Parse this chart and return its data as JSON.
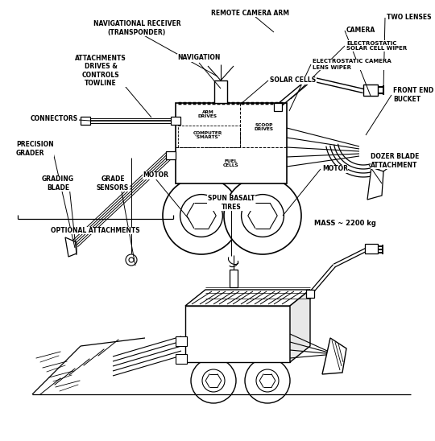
{
  "bg_color": "#ffffff",
  "line_color": "#000000",
  "fig_width": 5.4,
  "fig_height": 5.48,
  "dpi": 100,
  "labels": {
    "remote_camera_arm": "REMOTE CAMERA ARM",
    "two_lenses": "TWO LENSES",
    "camera": "CAMERA",
    "electrostatic_solar": "ELECTROSTATIC\nSOLAR CELL WIPER",
    "electrostatic_camera": "ELECTROSTATIC CAMERA\nLENS WIPER",
    "front_end_bucket": "FRONT END\nBUCKET",
    "dozer_blade": "DOZER BLADE\nATTACHMENT",
    "motor_right": "MOTOR",
    "spun_basalt": "SPUN BASALT\nTIRES",
    "navigation": "NAVIGATION",
    "solar_cells": "SOLAR CELLS",
    "nav_receiver": "NAVIGATIONAL RECEIVER\n(TRANSPONDER)",
    "attachments": "ATTACHMENTS\nDRIVES &\nCONTROLS\nTOWLINE",
    "connectors": "CONNECTORS",
    "precision_grader": "PRECISION\nGRADER",
    "grading_blade": "GRADING\nBLADE",
    "grade_sensors": "GRADE\nSENSORS",
    "motor_left": "MOTOR",
    "optional_attachments": "OPTIONAL ATTACHMENTS",
    "mass": "MASS ~ 2200 kg",
    "arm_drives": "ARM\nDRIVES",
    "computer_smarts": "COMPUTER\n\"SMARTS\"",
    "scoop_drives": "SCOOP\nDRIVES",
    "fuel_cells": "FUEL\nCELLS"
  }
}
